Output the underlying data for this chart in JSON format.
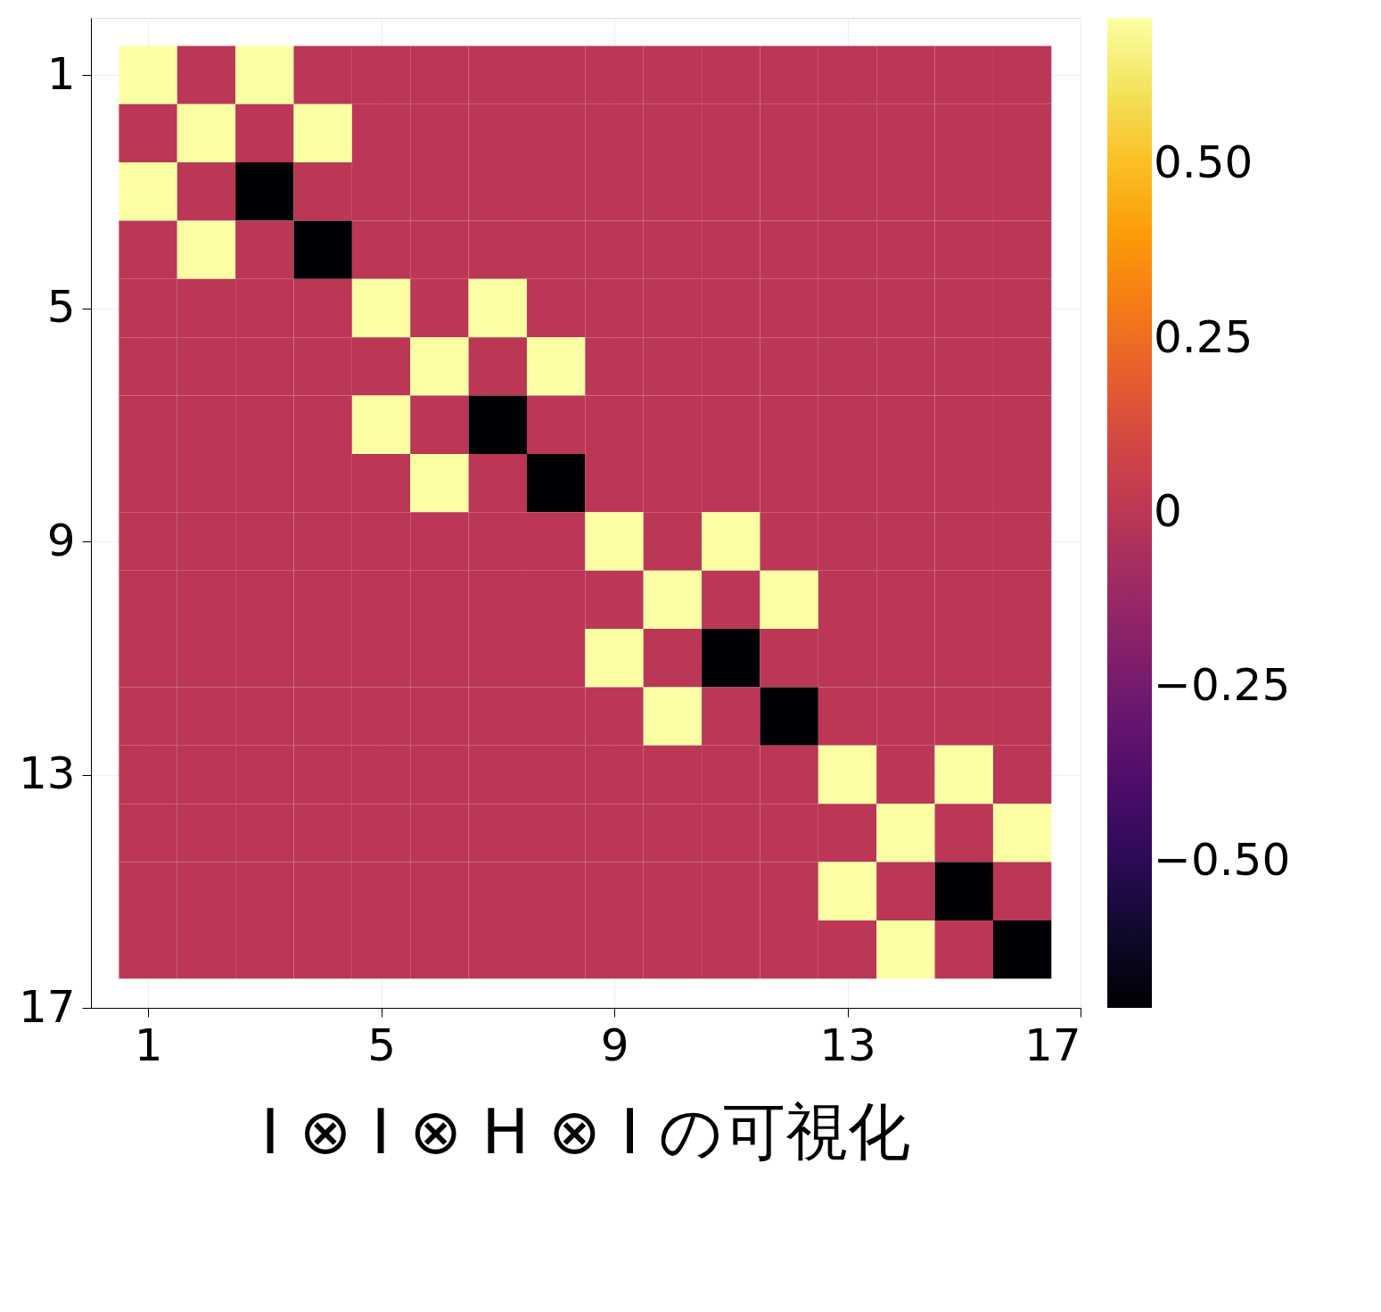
{
  "chart_data": {
    "type": "heatmap",
    "title": "I ⊗ I ⊗ H ⊗ I の可視化",
    "x": [
      1,
      2,
      3,
      4,
      5,
      6,
      7,
      8,
      9,
      10,
      11,
      12,
      13,
      14,
      15,
      16
    ],
    "y": [
      1,
      2,
      3,
      4,
      5,
      6,
      7,
      8,
      9,
      10,
      11,
      12,
      13,
      14,
      15,
      16
    ],
    "xlim": [
      0.02,
      17
    ],
    "xticks": [
      1,
      5,
      9,
      13,
      17
    ],
    "ylim": [
      17,
      0.02
    ],
    "yticks": [
      1,
      5,
      9,
      13,
      17
    ],
    "clim": [
      -0.71,
      0.71
    ],
    "cticks": [
      {
        "value": 0.5,
        "label": "0.50"
      },
      {
        "value": 0.25,
        "label": "0.25"
      },
      0,
      {
        "value": -0.25,
        "label": "−0.25"
      },
      {
        "value": -0.5,
        "label": "−0.50"
      }
    ],
    "grid": true,
    "cells": [
      [
        0.71,
        0,
        0.71,
        0,
        0,
        0,
        0,
        0,
        0,
        0,
        0,
        0,
        0,
        0,
        0,
        0
      ],
      [
        0,
        0.71,
        0,
        0.71,
        0,
        0,
        0,
        0,
        0,
        0,
        0,
        0,
        0,
        0,
        0,
        0
      ],
      [
        0.71,
        0,
        -0.71,
        0,
        0,
        0,
        0,
        0,
        0,
        0,
        0,
        0,
        0,
        0,
        0,
        0
      ],
      [
        0,
        0.71,
        0,
        -0.71,
        0,
        0,
        0,
        0,
        0,
        0,
        0,
        0,
        0,
        0,
        0,
        0
      ],
      [
        0,
        0,
        0,
        0,
        0.71,
        0,
        0.71,
        0,
        0,
        0,
        0,
        0,
        0,
        0,
        0,
        0
      ],
      [
        0,
        0,
        0,
        0,
        0,
        0.71,
        0,
        0.71,
        0,
        0,
        0,
        0,
        0,
        0,
        0,
        0
      ],
      [
        0,
        0,
        0,
        0,
        0.71,
        0,
        -0.71,
        0,
        0,
        0,
        0,
        0,
        0,
        0,
        0,
        0
      ],
      [
        0,
        0,
        0,
        0,
        0,
        0.71,
        0,
        -0.71,
        0,
        0,
        0,
        0,
        0,
        0,
        0,
        0
      ],
      [
        0,
        0,
        0,
        0,
        0,
        0,
        0,
        0,
        0.71,
        0,
        0.71,
        0,
        0,
        0,
        0,
        0
      ],
      [
        0,
        0,
        0,
        0,
        0,
        0,
        0,
        0,
        0,
        0.71,
        0,
        0.71,
        0,
        0,
        0,
        0
      ],
      [
        0,
        0,
        0,
        0,
        0,
        0,
        0,
        0,
        0.71,
        0,
        -0.71,
        0,
        0,
        0,
        0,
        0
      ],
      [
        0,
        0,
        0,
        0,
        0,
        0,
        0,
        0,
        0,
        0.71,
        0,
        -0.71,
        0,
        0,
        0,
        0
      ],
      [
        0,
        0,
        0,
        0,
        0,
        0,
        0,
        0,
        0,
        0,
        0,
        0,
        0.71,
        0,
        0.71,
        0
      ],
      [
        0,
        0,
        0,
        0,
        0,
        0,
        0,
        0,
        0,
        0,
        0,
        0,
        0,
        0.71,
        0,
        0.71
      ],
      [
        0,
        0,
        0,
        0,
        0,
        0,
        0,
        0,
        0,
        0,
        0,
        0,
        0.71,
        0,
        -0.71,
        0
      ],
      [
        0,
        0,
        0,
        0,
        0,
        0,
        0,
        0,
        0,
        0,
        0,
        0,
        0,
        0.71,
        0,
        -0.71
      ]
    ]
  }
}
